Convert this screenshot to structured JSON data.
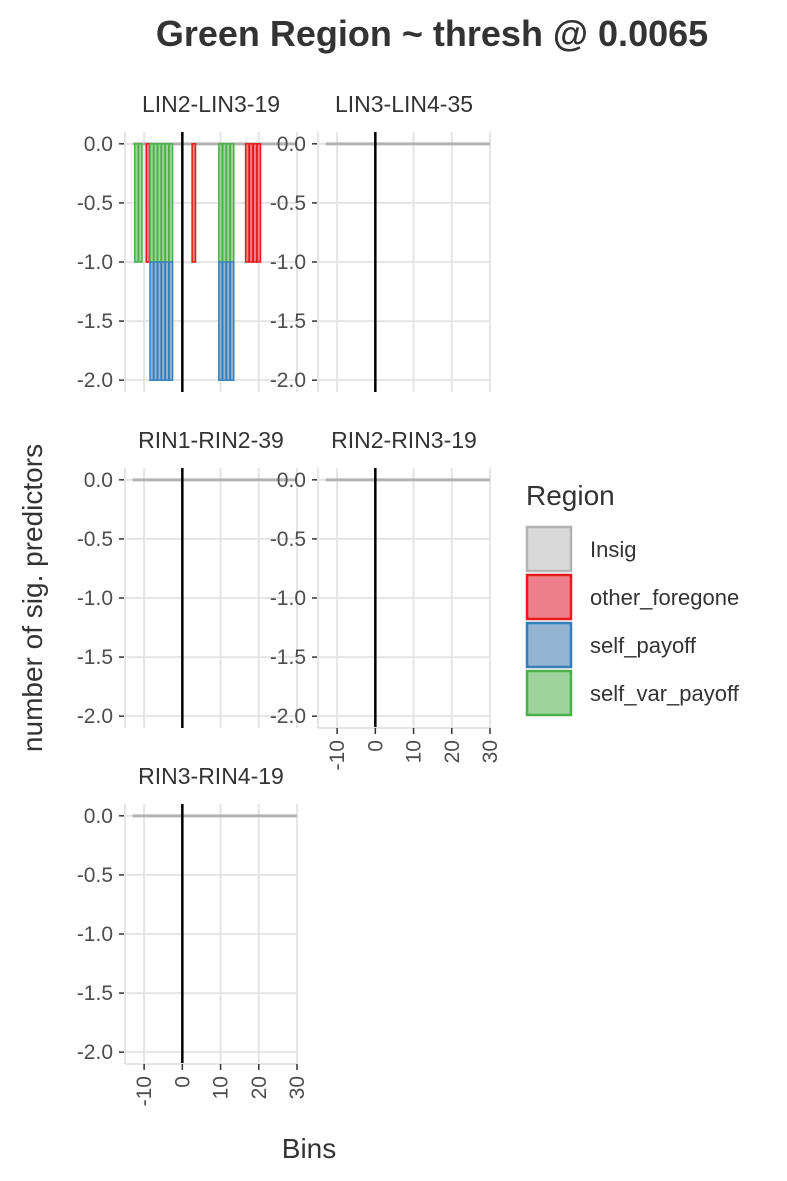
{
  "chart_data": {
    "type": "bar",
    "title": "Green Region ~ thresh @ 0.0065",
    "xlabel": "Bins",
    "ylabel": "number of sig. predictors",
    "xlim": [
      -15,
      30
    ],
    "ylim": [
      -2.1,
      0.1
    ],
    "x_ticks": [
      -10,
      0,
      10,
      20,
      30
    ],
    "y_ticks": [
      0.0,
      -0.5,
      -1.0,
      -1.5,
      -2.0
    ],
    "x_tick_labels": [
      "-10",
      "0",
      "10",
      "20",
      "30"
    ],
    "y_tick_labels": [
      "0.0",
      "-0.5",
      "-1.0",
      "-1.5",
      "-2.0"
    ],
    "vline_x": 0,
    "grid": true,
    "legend_position": "right",
    "legend": {
      "title": "Region",
      "entries": [
        {
          "name": "Insig",
          "fill": "#d9d9d9",
          "stroke": "#b3b3b3"
        },
        {
          "name": "other_foregone",
          "fill": "#ee7f8a",
          "stroke": "#e41a1c"
        },
        {
          "name": "self_payoff",
          "fill": "#94b4d4",
          "stroke": "#377eb8"
        },
        {
          "name": "self_var_payoff",
          "fill": "#9ed49b",
          "stroke": "#4daf4a"
        }
      ]
    },
    "panels": [
      {
        "label": "LIN2-LIN3-19",
        "bars": [
          {
            "x": -12,
            "region": "self_var_payoff",
            "y0": 0,
            "y1": -1
          },
          {
            "x": -11,
            "region": "self_var_payoff",
            "y0": 0,
            "y1": -1
          },
          {
            "x": -9,
            "region": "other_foregone",
            "y0": 0,
            "y1": -1
          },
          {
            "x": -8,
            "region": "self_var_payoff",
            "y0": 0,
            "y1": -1
          },
          {
            "x": -8,
            "region": "self_payoff",
            "y0": -1,
            "y1": -2
          },
          {
            "x": -7,
            "region": "self_var_payoff",
            "y0": 0,
            "y1": -1
          },
          {
            "x": -7,
            "region": "self_payoff",
            "y0": -1,
            "y1": -2
          },
          {
            "x": -6,
            "region": "self_var_payoff",
            "y0": 0,
            "y1": -1
          },
          {
            "x": -6,
            "region": "self_payoff",
            "y0": -1,
            "y1": -2
          },
          {
            "x": -5,
            "region": "self_var_payoff",
            "y0": 0,
            "y1": -1
          },
          {
            "x": -5,
            "region": "self_payoff",
            "y0": -1,
            "y1": -2
          },
          {
            "x": -4,
            "region": "self_var_payoff",
            "y0": 0,
            "y1": -1
          },
          {
            "x": -4,
            "region": "self_payoff",
            "y0": -1,
            "y1": -2
          },
          {
            "x": -3,
            "region": "self_var_payoff",
            "y0": 0,
            "y1": -1
          },
          {
            "x": -3,
            "region": "self_payoff",
            "y0": -1,
            "y1": -2
          },
          {
            "x": 3,
            "region": "other_foregone",
            "y0": 0,
            "y1": -1
          },
          {
            "x": 10,
            "region": "self_var_payoff",
            "y0": 0,
            "y1": -1
          },
          {
            "x": 10,
            "region": "self_payoff",
            "y0": -1,
            "y1": -2
          },
          {
            "x": 11,
            "region": "self_var_payoff",
            "y0": 0,
            "y1": -1
          },
          {
            "x": 11,
            "region": "self_payoff",
            "y0": -1,
            "y1": -2
          },
          {
            "x": 12,
            "region": "self_var_payoff",
            "y0": 0,
            "y1": -1
          },
          {
            "x": 12,
            "region": "self_payoff",
            "y0": -1,
            "y1": -2
          },
          {
            "x": 13,
            "region": "self_var_payoff",
            "y0": 0,
            "y1": -1
          },
          {
            "x": 13,
            "region": "self_payoff",
            "y0": -1,
            "y1": -2
          },
          {
            "x": 17,
            "region": "other_foregone",
            "y0": 0,
            "y1": -1
          },
          {
            "x": 18,
            "region": "other_foregone",
            "y0": 0,
            "y1": -1
          },
          {
            "x": 19,
            "region": "other_foregone",
            "y0": 0,
            "y1": -1
          },
          {
            "x": 20,
            "region": "other_foregone",
            "y0": 0,
            "y1": -1
          }
        ]
      },
      {
        "label": "LIN3-LIN4-35",
        "bars": []
      },
      {
        "label": "RIN1-RIN2-39",
        "bars": []
      },
      {
        "label": "RIN2-RIN3-19",
        "bars": []
      },
      {
        "label": "RIN3-RIN4-19",
        "bars": []
      }
    ]
  }
}
